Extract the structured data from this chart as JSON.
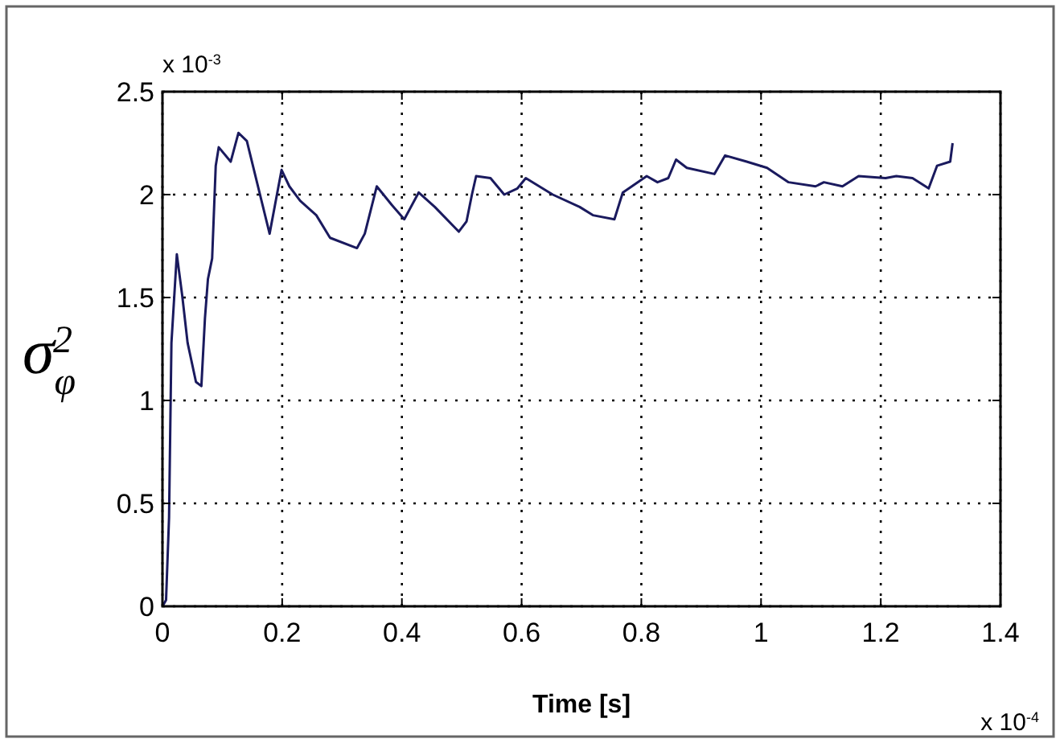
{
  "chart_data": {
    "type": "line",
    "xlabel": "Time [s]",
    "ylabel": "σ$_{φ}$$^{2}$",
    "annotations": [
      "x 10$^{-3}$",
      "x 10$^{-4}$"
    ],
    "x": [
      0,
      0.006,
      0.011,
      0.015,
      0.024,
      0.033,
      0.042,
      0.056,
      0.065,
      0.071,
      0.076,
      0.083,
      0.089,
      0.094,
      0.114,
      0.127,
      0.141,
      0.179,
      0.199,
      0.212,
      0.23,
      0.257,
      0.28,
      0.325,
      0.338,
      0.358,
      0.383,
      0.404,
      0.428,
      0.455,
      0.495,
      0.508,
      0.517,
      0.524,
      0.548,
      0.571,
      0.593,
      0.607,
      0.652,
      0.697,
      0.719,
      0.755,
      0.769,
      0.809,
      0.827,
      0.845,
      0.858,
      0.876,
      0.922,
      0.94,
      0.976,
      1.01,
      1.046,
      1.091,
      1.105,
      1.136,
      1.163,
      1.208,
      1.226,
      1.253,
      1.28,
      1.294,
      1.316,
      1.32
    ],
    "series": [
      {
        "color": "#1a1a5e",
        "values": [
          0,
          0.03,
          0.43,
          1.28,
          1.71,
          1.51,
          1.28,
          1.09,
          1.07,
          1.4,
          1.59,
          1.69,
          2.14,
          2.23,
          2.16,
          2.3,
          2.26,
          1.81,
          2.12,
          2.04,
          1.97,
          1.9,
          1.79,
          1.74,
          1.81,
          2.04,
          1.95,
          1.88,
          2.01,
          1.94,
          1.82,
          1.87,
          2.0,
          2.09,
          2.08,
          2.0,
          2.03,
          2.08,
          2.0,
          1.94,
          1.9,
          1.88,
          2.01,
          2.09,
          2.06,
          2.08,
          2.17,
          2.13,
          2.1,
          2.19,
          2.16,
          2.13,
          2.06,
          2.04,
          2.06,
          2.04,
          2.09,
          2.08,
          2.09,
          2.08,
          2.03,
          2.14,
          2.16,
          2.25
        ]
      }
    ],
    "xlim": [
      0,
      1.4
    ],
    "xticks": [
      0,
      0.2,
      0.4,
      0.6,
      0.8,
      1,
      1.2,
      1.4
    ],
    "ylim": [
      0,
      2.5
    ],
    "yticks": [
      0,
      0.5,
      1,
      1.5,
      2,
      2.5
    ],
    "grid": true,
    "line_style": "solid",
    "marker": "none"
  }
}
